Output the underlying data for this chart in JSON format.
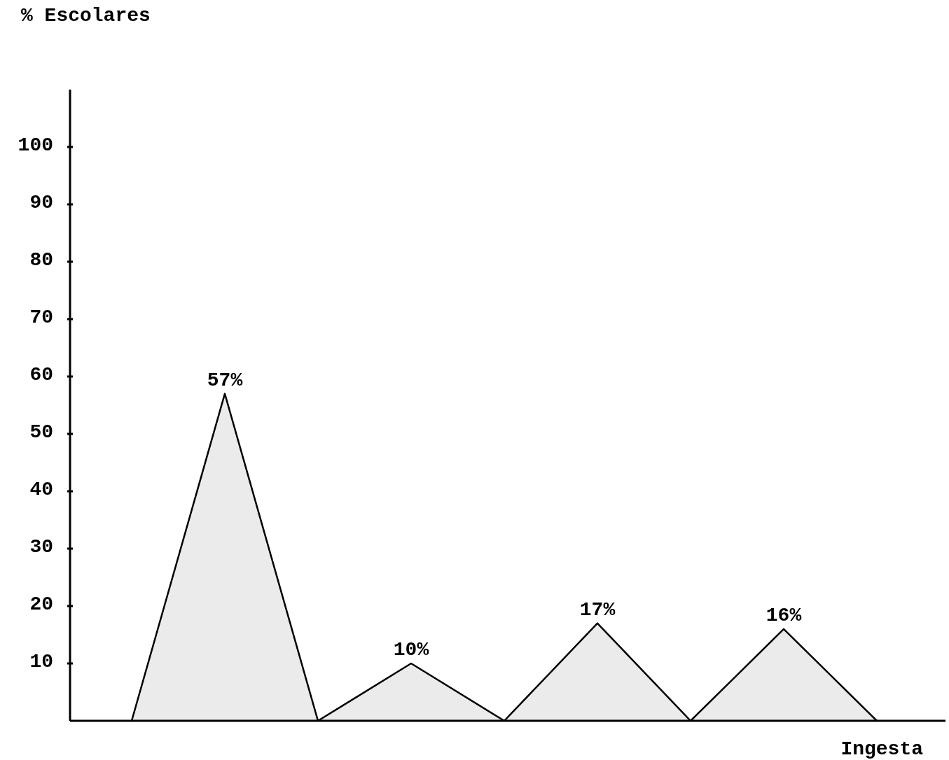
{
  "chart_data": {
    "type": "area",
    "ylabel": "% Escolares",
    "xlabel": "Ingesta",
    "categories": [
      null,
      null,
      null,
      null,
      null,
      null,
      null,
      null,
      null
    ],
    "values": [
      0,
      57,
      0,
      10,
      0,
      17,
      0,
      16,
      0
    ],
    "value_labels": [
      null,
      "57%",
      null,
      "10%",
      null,
      "17%",
      null,
      "16%",
      null
    ],
    "color": "#000000",
    "ylim": [
      0,
      110
    ],
    "yticks": [
      10,
      20,
      30,
      40,
      50,
      60,
      70,
      80,
      90,
      100
    ],
    "grid": false
  }
}
